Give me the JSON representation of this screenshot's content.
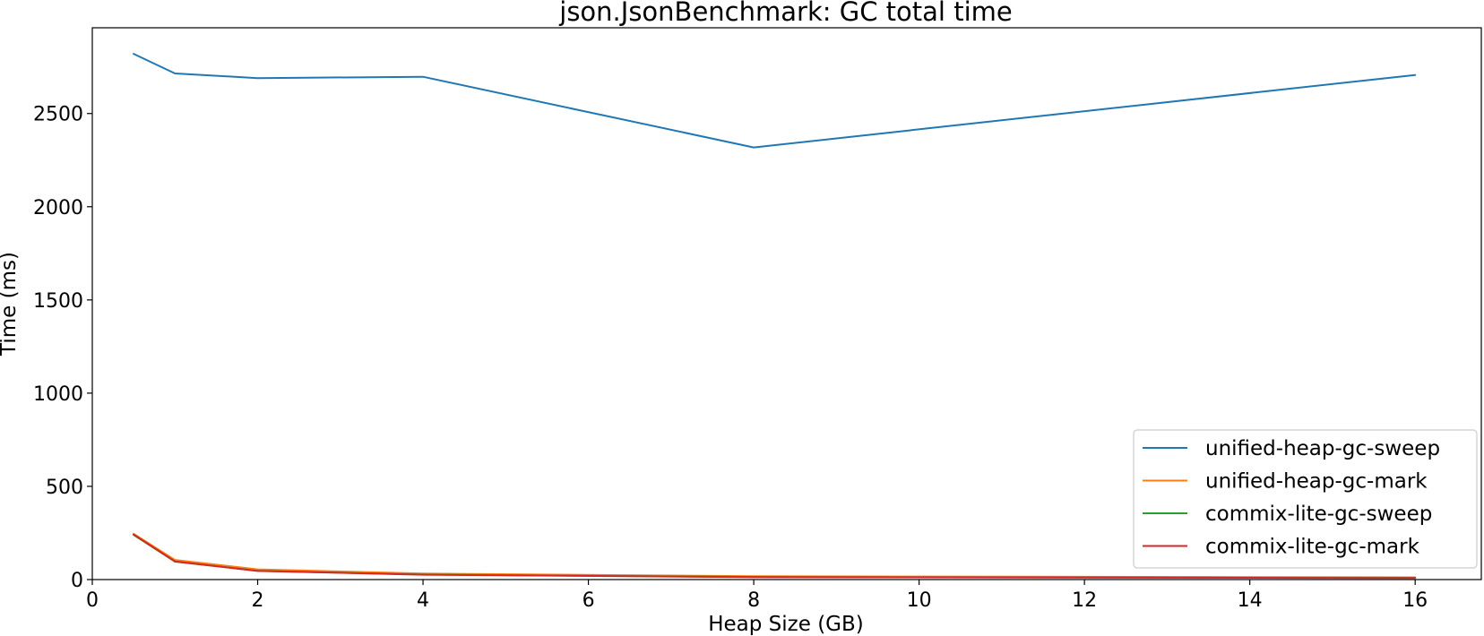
{
  "chart_data": {
    "type": "line",
    "title": "json.JsonBenchmark: GC total time",
    "xlabel": "Heap Size (GB)",
    "ylabel": "Time (ms)",
    "xlim": [
      0,
      16.8
    ],
    "ylim": [
      0,
      2960
    ],
    "xticks": [
      0,
      2,
      4,
      6,
      8,
      10,
      12,
      14,
      16
    ],
    "yticks": [
      0,
      500,
      1000,
      1500,
      2000,
      2500
    ],
    "grid": false,
    "legend_position": "lower-right",
    "x": [
      0.5,
      1,
      2,
      4,
      8,
      16
    ],
    "series": [
      {
        "name": "unified-heap-gc-sweep",
        "color": "#1f77b4",
        "values": [
          2820,
          2715,
          2690,
          2697,
          2318,
          2707
        ]
      },
      {
        "name": "unified-heap-gc-mark",
        "color": "#ff7f0e",
        "values": [
          245,
          105,
          55,
          32,
          18,
          12
        ]
      },
      {
        "name": "commix-lite-gc-sweep",
        "color": "#2ca02c",
        "values": [
          240,
          96,
          47,
          27,
          14,
          9
        ]
      },
      {
        "name": "commix-lite-gc-mark",
        "color": "#d62728",
        "values": [
          242,
          97,
          46,
          26,
          13,
          8
        ]
      }
    ]
  }
}
